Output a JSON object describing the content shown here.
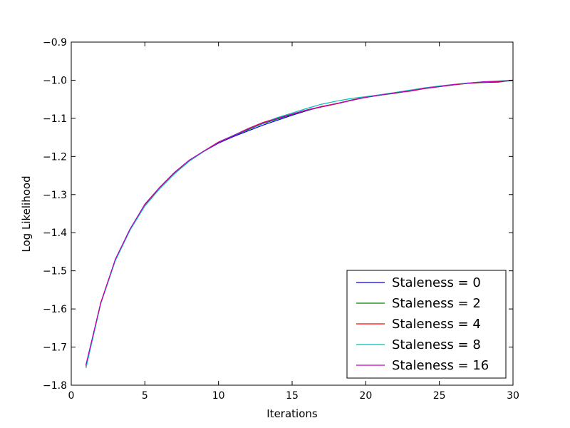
{
  "chart_data": {
    "type": "line",
    "title": "",
    "xlabel": "Iterations",
    "ylabel": "Log Likelihood",
    "xlim": [
      0,
      30
    ],
    "ylim": [
      -1.8,
      -0.9
    ],
    "xticks": [
      0,
      5,
      10,
      15,
      20,
      25,
      30
    ],
    "xtick_labels": [
      "0",
      "5",
      "10",
      "15",
      "20",
      "25",
      "30"
    ],
    "yticks": [
      -1.8,
      -1.7,
      -1.6,
      -1.5,
      -1.4,
      -1.3,
      -1.2,
      -1.1,
      -1.0,
      -0.9
    ],
    "ytick_labels": [
      "−1.8",
      "−1.7",
      "−1.6",
      "−1.5",
      "−1.4",
      "−1.3",
      "−1.2",
      "−1.1",
      "−1.0",
      "−0.9"
    ],
    "grid": false,
    "legend_position": "lower-right",
    "x": [
      1,
      2,
      3,
      4,
      5,
      6,
      7,
      8,
      9,
      10,
      11,
      12,
      13,
      14,
      15,
      16,
      17,
      18,
      19,
      20,
      21,
      22,
      23,
      24,
      25,
      26,
      27,
      28,
      29,
      30
    ],
    "series": [
      {
        "name": "Staleness = 0",
        "color": "#0000ff",
        "values": [
          -1.748,
          -1.585,
          -1.47,
          -1.39,
          -1.328,
          -1.283,
          -1.243,
          -1.212,
          -1.187,
          -1.165,
          -1.148,
          -1.133,
          -1.118,
          -1.105,
          -1.092,
          -1.08,
          -1.069,
          -1.062,
          -1.053,
          -1.045,
          -1.039,
          -1.034,
          -1.027,
          -1.021,
          -1.016,
          -1.012,
          -1.007,
          -1.006,
          -1.005,
          -1.0
        ]
      },
      {
        "name": "Staleness = 2",
        "color": "#008000",
        "values": [
          -1.752,
          -1.585,
          -1.47,
          -1.39,
          -1.327,
          -1.282,
          -1.244,
          -1.212,
          -1.186,
          -1.163,
          -1.146,
          -1.13,
          -1.114,
          -1.102,
          -1.09,
          -1.079,
          -1.07,
          -1.062,
          -1.052,
          -1.045,
          -1.039,
          -1.034,
          -1.028,
          -1.022,
          -1.017,
          -1.012,
          -1.008,
          -1.006,
          -1.004,
          -1.001
        ]
      },
      {
        "name": "Staleness = 4",
        "color": "#ff0000",
        "values": [
          -1.749,
          -1.584,
          -1.47,
          -1.391,
          -1.327,
          -1.283,
          -1.245,
          -1.212,
          -1.186,
          -1.162,
          -1.145,
          -1.127,
          -1.111,
          -1.099,
          -1.089,
          -1.078,
          -1.069,
          -1.061,
          -1.053,
          -1.044,
          -1.038,
          -1.033,
          -1.029,
          -1.022,
          -1.017,
          -1.012,
          -1.008,
          -1.005,
          -1.004,
          -1.0
        ]
      },
      {
        "name": "Staleness = 8",
        "color": "#00bfbf",
        "values": [
          -1.755,
          -1.587,
          -1.473,
          -1.393,
          -1.33,
          -1.285,
          -1.246,
          -1.213,
          -1.187,
          -1.163,
          -1.145,
          -1.128,
          -1.113,
          -1.098,
          -1.086,
          -1.074,
          -1.063,
          -1.055,
          -1.048,
          -1.043,
          -1.038,
          -1.032,
          -1.026,
          -1.02,
          -1.015,
          -1.011,
          -1.007,
          -1.004,
          -1.002,
          -1.0
        ]
      },
      {
        "name": "Staleness = 16",
        "color": "#bf00bf",
        "values": [
          -1.746,
          -1.585,
          -1.469,
          -1.39,
          -1.325,
          -1.281,
          -1.242,
          -1.21,
          -1.186,
          -1.163,
          -1.146,
          -1.128,
          -1.112,
          -1.1,
          -1.089,
          -1.078,
          -1.07,
          -1.062,
          -1.053,
          -1.045,
          -1.039,
          -1.033,
          -1.028,
          -1.021,
          -1.017,
          -1.011,
          -1.008,
          -1.004,
          -1.003,
          -1.0
        ]
      }
    ]
  }
}
